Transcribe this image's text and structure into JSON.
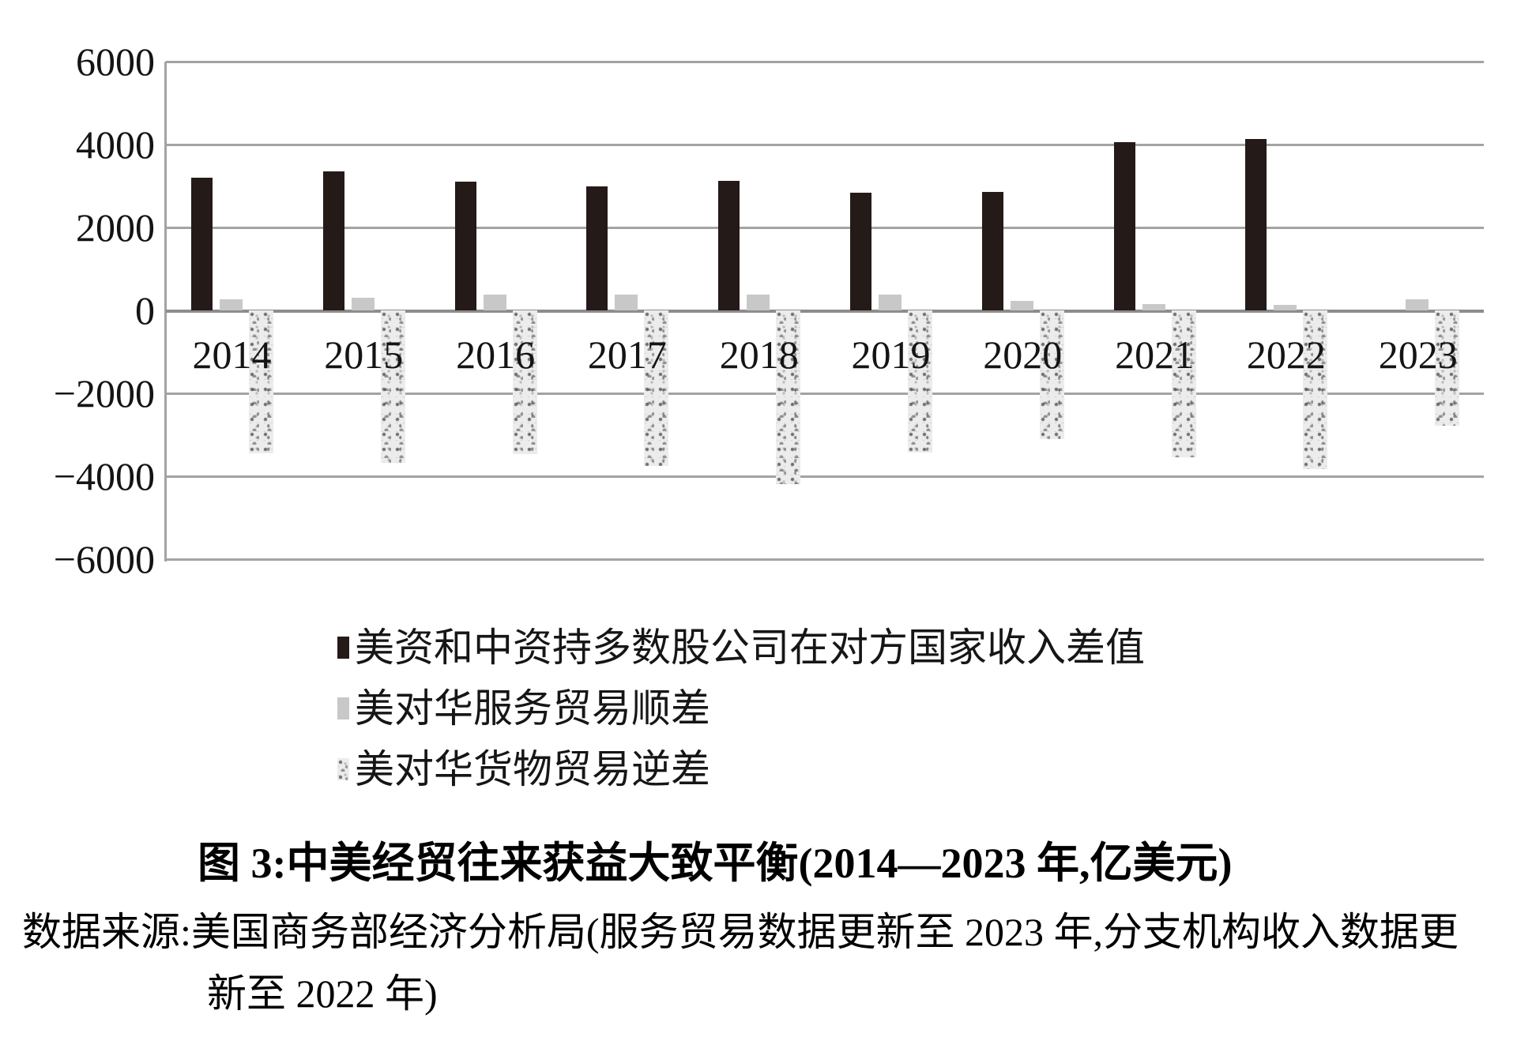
{
  "figure": {
    "title": "图 3:中美经贸往来获益大致平衡(2014—2023 年,亿美元)",
    "source_line1": "数据来源:美国商务部经济分析局(服务贸易数据更新至 2023 年,分支机构收入数据更",
    "source_line2": "新至 2022 年)"
  },
  "chart_data": {
    "type": "bar",
    "title": "图 3:中美经贸往来获益大致平衡(2014—2023 年,亿美元)",
    "xlabel": "",
    "ylabel": "",
    "unit": "亿美元",
    "categories": [
      "2014",
      "2015",
      "2016",
      "2017",
      "2018",
      "2019",
      "2020",
      "2021",
      "2022",
      "2023"
    ],
    "series": [
      {
        "name": "美资和中资持多数股公司在对方国家收入差值",
        "style": "solid-dark",
        "color": "#241a17",
        "values": [
          3200,
          3350,
          3100,
          3000,
          3120,
          2830,
          2850,
          4060,
          4130,
          null
        ]
      },
      {
        "name": "美对华服务贸易顺差",
        "style": "solid-light",
        "color": "#c8c8c8",
        "values": [
          270,
          300,
          380,
          390,
          390,
          380,
          230,
          160,
          130,
          260
        ]
      },
      {
        "name": "美对华货物贸易逆差",
        "style": "speckled",
        "color": "#ececec",
        "values": [
          -3450,
          -3670,
          -3470,
          -3750,
          -4190,
          -3420,
          -3100,
          -3550,
          -3820,
          -2790
        ]
      }
    ],
    "ylim": [
      -6000,
      6000
    ],
    "ytick_interval": 2000,
    "yticks": [
      "6000",
      "4000",
      "2000",
      "0",
      "−2000",
      "−4000",
      "−6000"
    ],
    "grid": true,
    "gridline_color": "#a3a3a3",
    "legend_position": "bottom-left"
  }
}
